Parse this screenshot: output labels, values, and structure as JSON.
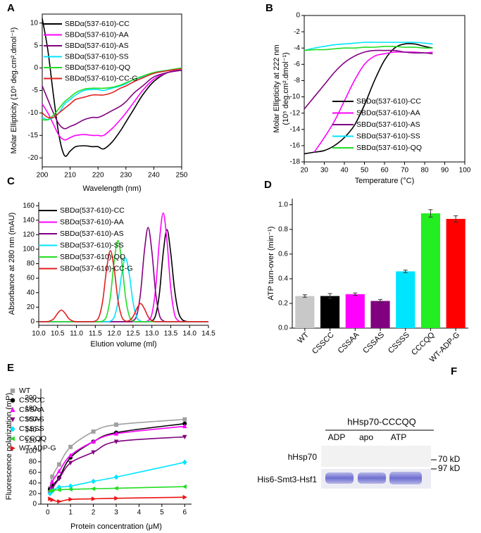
{
  "chart_data": [
    {
      "panel": "A",
      "type": "line",
      "x_label": "Wavelength (nm)",
      "y_label": [
        "Molar Ellipticity (10⁵ deg.cm².dmol⁻¹)"
      ],
      "x": [
        200,
        202,
        204,
        206,
        208,
        210,
        212,
        215,
        218,
        220,
        222,
        225,
        228,
        230,
        233,
        236,
        240,
        245,
        250
      ],
      "xlim": [
        200,
        250
      ],
      "xticks": [
        200,
        210,
        220,
        230,
        240,
        250
      ],
      "ylim": [
        -22,
        12
      ],
      "yticks": [
        -20,
        -15,
        -10,
        -5,
        0,
        5,
        10
      ],
      "legend": "upper left",
      "series": [
        {
          "name": "SBDα(537-610)-CC",
          "color": "#000000",
          "values": [
            11,
            4,
            -6,
            -15,
            -19.5,
            -18.5,
            -17.5,
            -17.3,
            -17.5,
            -17.5,
            -18,
            -16.5,
            -14,
            -12,
            -9,
            -6,
            -3,
            -1,
            -0.5
          ]
        },
        {
          "name": "SBDα(537-610)-AA",
          "color": "#ff00ff",
          "values": [
            -8,
            -10,
            -12.5,
            -15,
            -16,
            -15.5,
            -15,
            -14.8,
            -15,
            -15,
            -15,
            -13.5,
            -11.5,
            -10,
            -7.5,
            -5,
            -2.5,
            -1,
            -0.5
          ]
        },
        {
          "name": "SBDα(537-610)-AS",
          "color": "#800080",
          "values": [
            -4,
            -7,
            -10,
            -12.5,
            -13.5,
            -13,
            -12.5,
            -11.5,
            -11,
            -11,
            -10.5,
            -9.5,
            -8.5,
            -7.5,
            -5.5,
            -4,
            -2,
            -1,
            -0.5
          ]
        },
        {
          "name": "SBDα(537-610)-SS",
          "color": "#00e5ff",
          "values": [
            -11,
            -11.5,
            -11,
            -10,
            -8,
            -7,
            -6,
            -5,
            -4.8,
            -4.8,
            -5,
            -4.5,
            -4,
            -3.5,
            -2.5,
            -2,
            -1,
            -0.5,
            0
          ]
        },
        {
          "name": "SBDα(537-610)-QQ",
          "color": "#22dd22",
          "values": [
            -11.5,
            -11.5,
            -10.5,
            -9,
            -7.5,
            -6.5,
            -5.5,
            -4.7,
            -4.5,
            -4.5,
            -4.5,
            -4.3,
            -3.8,
            -3.3,
            -2.5,
            -1.8,
            -1,
            -0.5,
            0
          ]
        },
        {
          "name": "SBDα(537-610)-CC-G",
          "color": "#e02020",
          "values": [
            -10,
            -11,
            -11,
            -10,
            -9,
            -8,
            -7,
            -6.5,
            -6,
            -6,
            -6,
            -5.5,
            -4.5,
            -4,
            -3,
            -2.2,
            -1.2,
            -0.6,
            -0.2
          ]
        }
      ]
    },
    {
      "panel": "B",
      "type": "line",
      "x_label": "Temperature (°C)",
      "y_label": [
        "Molar Ellipticity at 222 nm",
        "(10⁵ deg.cm².dmol⁻¹)"
      ],
      "x": [
        20,
        25,
        30,
        35,
        40,
        45,
        50,
        55,
        60,
        65,
        70,
        75,
        80,
        84
      ],
      "xlim": [
        20,
        100
      ],
      "xticks": [
        20,
        30,
        40,
        50,
        60,
        70,
        80,
        90,
        100
      ],
      "ylim": [
        -18,
        0
      ],
      "yticks": [
        -18,
        -16,
        -14,
        -12,
        -10,
        -8,
        -6,
        -4,
        -2,
        0
      ],
      "legend": "lower right",
      "series": [
        {
          "name": "SBDα(537-610)-CC",
          "color": "#000000",
          "values": [
            -17,
            -16.8,
            -16.6,
            -16,
            -15,
            -13.5,
            -11,
            -8,
            -5.5,
            -4,
            -3.5,
            -3.5,
            -3.8,
            -4
          ]
        },
        {
          "name": "SBDα(537-610)-AA",
          "color": "#ff00ff",
          "values": [
            null,
            -16.8,
            -15,
            -13,
            -10.5,
            -8,
            -6,
            -5,
            -4.7,
            -4.5,
            -4.5,
            -4.5,
            -4.6,
            -4.5
          ]
        },
        {
          "name": "SBDα(537-610)-AS",
          "color": "#800080",
          "values": [
            -11.5,
            -10,
            -8.5,
            -7,
            -5.8,
            -5,
            -4.5,
            -4.3,
            -4.3,
            -4.3,
            -4.5,
            -4.6,
            -4.6,
            -4.7
          ]
        },
        {
          "name": "SBDα(537-610)-SS",
          "color": "#00e5ff",
          "values": [
            -4.3,
            -4,
            -3.8,
            -3.6,
            -3.5,
            -3.4,
            -3.3,
            -3.3,
            -3.3,
            -3.3,
            -3.3,
            -3.3,
            -3.4,
            -3.5
          ]
        },
        {
          "name": "SBDα(537-610)-QQ",
          "color": "#22dd22",
          "values": [
            -4.3,
            -4.2,
            -4.2,
            -4.1,
            -4,
            -4,
            -3.9,
            -3.9,
            -3.8,
            -3.8,
            -3.9,
            -3.9,
            -4,
            -4
          ]
        }
      ]
    },
    {
      "panel": "C",
      "type": "line",
      "x_label": "Elution volume (ml)",
      "y_label": [
        "Absorbance at 280 nm (mAU)"
      ],
      "x": [
        10,
        10.1,
        10.2,
        10.3,
        10.4,
        10.5,
        10.6,
        10.7,
        10.8,
        10.9,
        11,
        11.1,
        11.2,
        11.3,
        11.4,
        11.5,
        11.6,
        11.7,
        11.8,
        11.9,
        12,
        12.1,
        12.2,
        12.3,
        12.4,
        12.5,
        12.6,
        12.7,
        12.8,
        12.9,
        13,
        13.1,
        13.2,
        13.3,
        13.4,
        13.5,
        13.6,
        13.7,
        13.8,
        13.9,
        14,
        14.1,
        14.2,
        14.3,
        14.4,
        14.5
      ],
      "xlim": [
        10,
        14.5
      ],
      "xticks": [
        {
          "value": 10,
          "label": "10.0"
        },
        10.5,
        {
          "value": 11,
          "label": "11.0"
        },
        11.5,
        {
          "value": 12,
          "label": "12.0"
        },
        12.5,
        {
          "value": 13,
          "label": "13.0"
        },
        13.5,
        {
          "value": 14,
          "label": "14.0"
        },
        14.5
      ],
      "ylim": [
        -5,
        165
      ],
      "yticks": [
        0,
        20,
        40,
        60,
        80,
        100,
        120,
        140,
        160
      ],
      "legend": "upper left",
      "series": [
        {
          "name": "SBDα(537-610)-CC",
          "color": "#000000",
          "values": [
            0,
            0,
            0,
            0,
            0,
            0,
            0,
            0,
            0,
            0,
            0,
            0,
            0,
            0,
            0,
            0,
            0,
            0,
            0,
            0,
            0,
            0,
            0,
            0,
            0,
            0,
            0,
            0,
            0,
            0,
            1,
            9,
            39,
            94.5,
            127,
            94.5,
            45,
            14,
            3,
            0.5,
            0,
            0,
            0,
            0,
            0,
            0
          ]
        },
        {
          "name": "SBDα(537-610)-AA",
          "color": "#ff00ff",
          "values": [
            0,
            0,
            0,
            0,
            0,
            0,
            0,
            0,
            0,
            0,
            0,
            0,
            0,
            0,
            0,
            0,
            0,
            0,
            0,
            0,
            0,
            0,
            0,
            0,
            0,
            0,
            0,
            0,
            0,
            1.4,
            10.5,
            46,
            111.6,
            150,
            111.6,
            46,
            10.5,
            1.4,
            0,
            0,
            0,
            0,
            0,
            0,
            0,
            0
          ]
        },
        {
          "name": "SBDα(537-610)-AS",
          "color": "#800080",
          "values": [
            0,
            0,
            0,
            0,
            0,
            0,
            0,
            0,
            0,
            0,
            0,
            0,
            0,
            0,
            0,
            0,
            0,
            0,
            0,
            0,
            0,
            0,
            0,
            0,
            0,
            1.2,
            9.1,
            39.8,
            96.7,
            130,
            96.7,
            39.8,
            9.1,
            1.2,
            0,
            0,
            0,
            0,
            0,
            0,
            0,
            0,
            0,
            0,
            0,
            0
          ]
        },
        {
          "name": "SBDα(537-610)-SS",
          "color": "#00e5ff",
          "values": [
            0,
            0,
            0,
            0,
            0,
            0,
            0,
            0,
            0,
            0,
            0,
            0,
            0,
            0,
            0,
            0,
            0,
            0,
            0,
            0.8,
            6.2,
            27,
            65.5,
            88,
            65.5,
            27,
            6.2,
            0.8,
            0,
            0,
            0,
            0,
            0,
            0,
            0,
            0,
            0,
            0,
            0,
            0,
            0,
            0,
            0,
            0,
            0,
            0
          ]
        },
        {
          "name": "SBDα(537-610)-QQ",
          "color": "#22dd22",
          "values": [
            0,
            0,
            0,
            0,
            0,
            0,
            0,
            0,
            0,
            0,
            0,
            0,
            0,
            0,
            0,
            0,
            0,
            1,
            7.8,
            34.3,
            83.3,
            112,
            83.3,
            34.3,
            7.8,
            1,
            0,
            0,
            0,
            0,
            0,
            0,
            0,
            0,
            0,
            0,
            0,
            0,
            0,
            0,
            0,
            0,
            0,
            0,
            0,
            0
          ]
        },
        {
          "name": "SBDα(537-610)-CC-G",
          "color": "#e02020",
          "values": [
            0,
            0,
            0,
            1,
            4,
            11.5,
            16,
            11.5,
            4,
            1,
            0,
            0,
            0,
            0,
            0,
            0.9,
            6.9,
            30,
            73,
            98,
            73,
            30,
            6.9,
            1,
            1.5,
            7,
            18,
            25,
            18,
            7,
            1.5,
            0,
            0,
            0,
            0,
            0,
            0,
            0,
            0,
            0,
            0,
            0,
            0,
            0,
            0,
            0
          ]
        }
      ]
    },
    {
      "panel": "D",
      "type": "bar",
      "y_label": [
        "ATP turn-over (min⁻¹)"
      ],
      "categories": [
        "WT",
        "CSSCC",
        "CSSAA",
        "CSSAS",
        "CSSSS",
        "CCCQQ",
        "WT-ADP-G"
      ],
      "values": [
        0.26,
        0.26,
        0.275,
        0.22,
        0.46,
        0.93,
        0.885
      ],
      "errors": [
        0.01,
        0.02,
        0.01,
        0.012,
        0.01,
        0.03,
        0.025
      ],
      "colors": [
        "#c8c8c8",
        "#000000",
        "#ff00ff",
        "#800080",
        "#00e5ff",
        "#22ee22",
        "#ff0000"
      ],
      "ylim": [
        0,
        1.05
      ],
      "yticks": [
        {
          "value": 0,
          "label": "0.0"
        },
        0.2,
        0.4,
        0.6,
        0.8,
        {
          "value": 1,
          "label": "1.0"
        }
      ]
    },
    {
      "panel": "E",
      "type": "scatter",
      "x_label": "Protein concentration (μM)",
      "y_label": [
        "Fluorescence polarization (mP)"
      ],
      "x": [
        0.1,
        0.2,
        0.5,
        1,
        2,
        3,
        6
      ],
      "xlim": [
        -0.3,
        6.3
      ],
      "xticks": [
        0,
        1,
        2,
        3,
        4,
        5,
        6
      ],
      "ylim": [
        0,
        218
      ],
      "yticks": [
        0,
        20,
        40,
        60,
        80,
        100,
        120,
        140,
        160,
        180,
        200
      ],
      "legend": "upper left",
      "series": [
        {
          "name": "WT",
          "color": "#a0a0a0",
          "marker": "square",
          "values": [
            30,
            52,
            75,
            108,
            137,
            150,
            160
          ]
        },
        {
          "name": "CSSCC",
          "color": "#000000",
          "marker": "circle",
          "values": [
            28,
            35,
            50,
            88,
            118,
            135,
            152
          ]
        },
        {
          "name": "CSSAA",
          "color": "#ff00ff",
          "marker": "triangle-up",
          "values": [
            25,
            42,
            62,
            92,
            118,
            133,
            147
          ]
        },
        {
          "name": "CSSAS",
          "color": "#800080",
          "marker": "triangle-down",
          "values": [
            22,
            30,
            48,
            78,
            98,
            118,
            127
          ]
        },
        {
          "name": "CSSSS",
          "color": "#00e5ff",
          "marker": "diamond",
          "values": [
            20,
            25,
            32,
            34,
            43,
            51,
            79
          ]
        },
        {
          "name": "CCCQQ",
          "color": "#22dd22",
          "marker": "triangle-left",
          "values": [
            25,
            26,
            27,
            28,
            29,
            30,
            33
          ]
        },
        {
          "name": "WT-ADP-G",
          "color": "#ee1111",
          "marker": "triangle-right",
          "values": [
            10,
            8,
            5,
            9,
            10,
            11,
            13
          ]
        }
      ]
    }
  ],
  "gel": {
    "panel": "F",
    "title": "hHsp70-CCCQQ",
    "lanes": [
      "ADP",
      "apo",
      "ATP"
    ],
    "rows": [
      "hHsp70",
      "His6-Smt3-Hsf1"
    ],
    "markers": [
      "70 kD",
      "97 kD"
    ]
  }
}
